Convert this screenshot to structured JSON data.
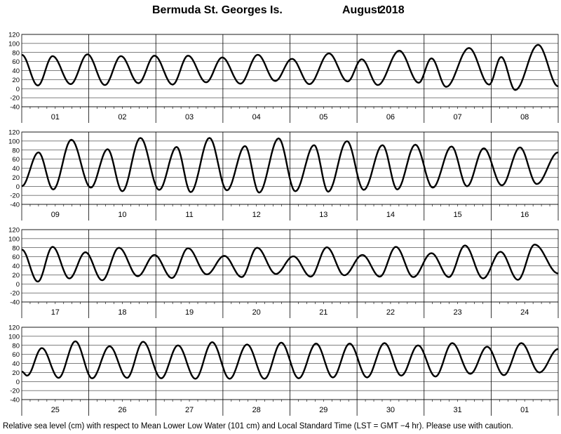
{
  "title": {
    "station": "Bermuda St. Georges Is.",
    "month": "August",
    "year": "2018"
  },
  "footnote": "Relative sea level (cm) with respect to Mean Lower Low Water (101 cm) and Local Standard Time (LST = GMT −4 hr). Please use with caution.",
  "chart_data": [
    {
      "type": "line",
      "x_labels": [
        "01",
        "02",
        "03",
        "04",
        "05",
        "06",
        "07",
        "08"
      ],
      "ylim": [
        -40,
        120
      ],
      "y_ticks": [
        -40,
        -20,
        0,
        20,
        40,
        60,
        80,
        100,
        120
      ],
      "grid": true,
      "x_unit": "day",
      "series": [
        {
          "values": [
            [
              0,
              75
            ],
            [
              0.24,
              7
            ],
            [
              0.46,
              72
            ],
            [
              0.73,
              10
            ],
            [
              0.98,
              76
            ],
            [
              1.24,
              8
            ],
            [
              1.48,
              72
            ],
            [
              1.74,
              12
            ],
            [
              1.98,
              73
            ],
            [
              2.25,
              9
            ],
            [
              2.48,
              73
            ],
            [
              2.75,
              14
            ],
            [
              2.99,
              69
            ],
            [
              3.26,
              11
            ],
            [
              3.52,
              75
            ],
            [
              3.78,
              17
            ],
            [
              4.03,
              66
            ],
            [
              4.29,
              10
            ],
            [
              4.58,
              78
            ],
            [
              4.86,
              16
            ],
            [
              5.07,
              65
            ],
            [
              5.31,
              8
            ],
            [
              5.63,
              84
            ],
            [
              5.92,
              13
            ],
            [
              6.11,
              67
            ],
            [
              6.33,
              4
            ],
            [
              6.67,
              90
            ],
            [
              6.97,
              9
            ],
            [
              7.15,
              70
            ],
            [
              7.36,
              -3
            ],
            [
              7.7,
              97
            ],
            [
              8,
              5
            ]
          ]
        }
      ]
    },
    {
      "type": "line",
      "x_labels": [
        "09",
        "10",
        "11",
        "12",
        "13",
        "14",
        "15",
        "16"
      ],
      "ylim": [
        -40,
        120
      ],
      "y_ticks": [
        -40,
        -20,
        0,
        20,
        40,
        60,
        80,
        100,
        120
      ],
      "grid": true,
      "x_unit": "day",
      "series": [
        {
          "values": [
            [
              0,
              0
            ],
            [
              0.25,
              75
            ],
            [
              0.47,
              -7
            ],
            [
              0.74,
              103
            ],
            [
              1.03,
              -3
            ],
            [
              1.28,
              82
            ],
            [
              1.5,
              -11
            ],
            [
              1.77,
              107
            ],
            [
              2.05,
              -8
            ],
            [
              2.31,
              87
            ],
            [
              2.52,
              -13
            ],
            [
              2.8,
              107
            ],
            [
              3.06,
              -9
            ],
            [
              3.33,
              89
            ],
            [
              3.54,
              -14
            ],
            [
              3.83,
              106
            ],
            [
              4.08,
              -11
            ],
            [
              4.36,
              91
            ],
            [
              4.57,
              -12
            ],
            [
              4.85,
              100
            ],
            [
              5.1,
              -8
            ],
            [
              5.38,
              91
            ],
            [
              5.6,
              -7
            ],
            [
              5.87,
              92
            ],
            [
              6.13,
              -3
            ],
            [
              6.41,
              88
            ],
            [
              6.64,
              0
            ],
            [
              6.89,
              84
            ],
            [
              7.16,
              2
            ],
            [
              7.43,
              86
            ],
            [
              7.68,
              5
            ],
            [
              8,
              75
            ]
          ]
        }
      ]
    },
    {
      "type": "line",
      "x_labels": [
        "17",
        "18",
        "19",
        "20",
        "21",
        "22",
        "23",
        "24"
      ],
      "ylim": [
        -40,
        120
      ],
      "y_ticks": [
        -40,
        -20,
        0,
        20,
        40,
        60,
        80,
        100,
        120
      ],
      "grid": true,
      "x_unit": "day",
      "series": [
        {
          "values": [
            [
              0,
              76
            ],
            [
              0.24,
              5
            ],
            [
              0.46,
              82
            ],
            [
              0.71,
              12
            ],
            [
              0.95,
              70
            ],
            [
              1.2,
              8
            ],
            [
              1.45,
              80
            ],
            [
              1.73,
              17
            ],
            [
              1.98,
              64
            ],
            [
              2.24,
              13
            ],
            [
              2.48,
              79
            ],
            [
              2.76,
              21
            ],
            [
              3.02,
              62
            ],
            [
              3.28,
              15
            ],
            [
              3.51,
              80
            ],
            [
              3.79,
              22
            ],
            [
              4.05,
              61
            ],
            [
              4.31,
              16
            ],
            [
              4.55,
              81
            ],
            [
              4.81,
              19
            ],
            [
              5.08,
              64
            ],
            [
              5.34,
              16
            ],
            [
              5.58,
              82
            ],
            [
              5.84,
              15
            ],
            [
              6.11,
              68
            ],
            [
              6.37,
              15
            ],
            [
              6.61,
              85
            ],
            [
              6.88,
              12
            ],
            [
              7.14,
              71
            ],
            [
              7.4,
              9
            ],
            [
              7.65,
              87
            ],
            [
              8,
              23
            ]
          ]
        }
      ]
    },
    {
      "type": "line",
      "x_labels": [
        "25",
        "26",
        "27",
        "28",
        "29",
        "30",
        "31",
        "01"
      ],
      "ylim": [
        -40,
        120
      ],
      "y_ticks": [
        -40,
        -20,
        0,
        20,
        40,
        60,
        80,
        100,
        120
      ],
      "grid": true,
      "x_unit": "day",
      "series": [
        {
          "values": [
            [
              0,
              22
            ],
            [
              0.08,
              13
            ],
            [
              0.3,
              74
            ],
            [
              0.55,
              8
            ],
            [
              0.8,
              89
            ],
            [
              1.05,
              7
            ],
            [
              1.31,
              78
            ],
            [
              1.57,
              8
            ],
            [
              1.81,
              88
            ],
            [
              2.08,
              7
            ],
            [
              2.33,
              80
            ],
            [
              2.59,
              6
            ],
            [
              2.84,
              87
            ],
            [
              3.1,
              6
            ],
            [
              3.36,
              82
            ],
            [
              3.62,
              6
            ],
            [
              3.87,
              86
            ],
            [
              4.13,
              7
            ],
            [
              4.39,
              84
            ],
            [
              4.64,
              9
            ],
            [
              4.89,
              84
            ],
            [
              5.15,
              9
            ],
            [
              5.41,
              85
            ],
            [
              5.66,
              13
            ],
            [
              5.91,
              80
            ],
            [
              6.17,
              11
            ],
            [
              6.42,
              85
            ],
            [
              6.69,
              17
            ],
            [
              6.94,
              77
            ],
            [
              7.19,
              14
            ],
            [
              7.45,
              85
            ],
            [
              7.72,
              20
            ],
            [
              8,
              72
            ]
          ]
        }
      ]
    }
  ]
}
